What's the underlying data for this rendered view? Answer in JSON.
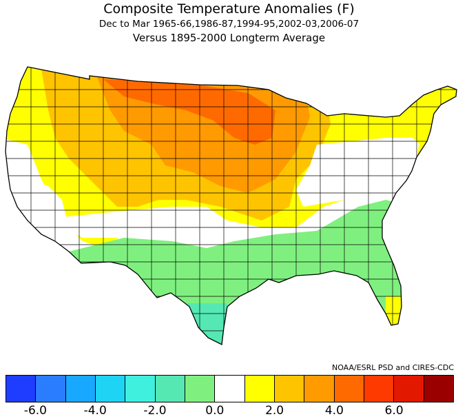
{
  "header": {
    "title": "Composite Temperature Anomalies (F)",
    "period": "Dec to Mar  1965-66,1986-87,1994-95,2002-03,2006-07",
    "baseline": "Versus 1895-2000 Longterm Average"
  },
  "credit": "NOAA/ESRL PSD and CIRES-CDC",
  "colors": {
    "bins": [
      "#1f3dff",
      "#2b7dff",
      "#19a8ff",
      "#1fd3f5",
      "#3ff0df",
      "#55e8b3",
      "#7ff07f",
      "#ffffff",
      "#ffff00",
      "#ffc400",
      "#ff9a00",
      "#ff6a00",
      "#ff3a00",
      "#e21800",
      "#9b0000"
    ],
    "outline": "#000000"
  },
  "legend_ticks": [
    "-6.0",
    "-4.0",
    "-2.0",
    "0.0",
    "2.0",
    "4.0",
    "6.0"
  ],
  "regions": {
    "Pacific Northwest": "yellow",
    "California Coast": "white",
    "Great Basin": "yellow",
    "Northern Rockies": "orange",
    "Northern Plains": "red-orange",
    "Upper Midwest": "red-orange",
    "Central Plains": "orange",
    "Southwest": "light-green",
    "Texas South": "teal",
    "Gulf Coast": "green",
    "Southeast": "green",
    "Ohio Valley": "white",
    "Northeast": "yellow",
    "Peninsular Florida": "yellow"
  }
}
